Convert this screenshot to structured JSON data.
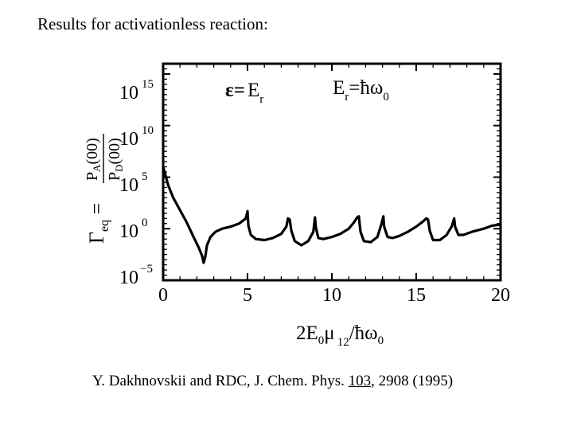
{
  "slide": {
    "title": "Results for activationless reaction:",
    "citation": {
      "prefix": "Y. Dakhnovskii and RDC, J. Chem. Phys. ",
      "volume": "103",
      "suffix": ", 2908 (1995)"
    }
  },
  "chart_data": {
    "type": "line",
    "title": "",
    "xlabel": "2E0μ12/ħω0",
    "ylabel": "Γeq = PA(00)/PD(00)",
    "xlim": [
      0,
      20
    ],
    "ylim_log10": [
      -5,
      16
    ],
    "y_scale": "log",
    "x_ticks": [
      "0",
      "5",
      "10",
      "15",
      "20"
    ],
    "y_ticks": [
      {
        "base": "10",
        "exp": "15"
      },
      {
        "base": "10",
        "exp": "10"
      },
      {
        "base": "10",
        "exp": "5"
      },
      {
        "base": "10",
        "exp": "0"
      },
      {
        "base": "10",
        "exp": "−5"
      }
    ],
    "annotations": {
      "condition_lhs": "ε",
      "condition_eq": "=",
      "condition_rhs_base": "E",
      "condition_rhs_sub": "r",
      "param_base": "E",
      "param_sub": "r",
      "param_eq": "=ħω",
      "param_sub2": "0"
    },
    "series": [
      {
        "color": "#000000",
        "x": [
          0.0,
          0.3,
          0.6,
          1.0,
          1.4,
          1.8,
          2.1,
          2.3,
          2.4,
          2.5,
          2.6,
          2.8,
          3.1,
          3.5,
          4.0,
          4.5,
          4.9,
          5.0,
          5.05,
          5.2,
          5.5,
          6.0,
          6.5,
          7.0,
          7.3,
          7.4,
          7.5,
          7.6,
          7.8,
          8.2,
          8.6,
          8.9,
          9.0,
          9.05,
          9.2,
          9.5,
          10.0,
          10.5,
          11.0,
          11.3,
          11.5,
          11.6,
          11.7,
          11.9,
          12.3,
          12.7,
          12.95,
          13.05,
          13.1,
          13.3,
          13.6,
          14.0,
          14.5,
          15.0,
          15.4,
          15.6,
          15.7,
          15.8,
          16.0,
          16.4,
          16.8,
          17.1,
          17.25,
          17.3,
          17.5,
          17.8,
          18.3,
          19.0,
          19.5,
          20.0
        ],
        "y_log10": [
          6.0,
          4.2,
          3.0,
          1.8,
          0.6,
          -0.8,
          -1.8,
          -2.6,
          -3.3,
          -2.7,
          -1.6,
          -0.8,
          -0.3,
          0.0,
          0.2,
          0.5,
          1.0,
          1.7,
          0.3,
          -0.6,
          -1.0,
          -1.1,
          -0.9,
          -0.5,
          0.2,
          1.0,
          0.9,
          -0.2,
          -1.2,
          -1.6,
          -1.2,
          -0.3,
          1.1,
          0.1,
          -0.9,
          -1.0,
          -0.8,
          -0.5,
          0.0,
          0.6,
          1.1,
          1.2,
          -0.3,
          -1.2,
          -1.3,
          -0.8,
          0.5,
          1.2,
          0.2,
          -0.8,
          -0.9,
          -0.7,
          -0.3,
          0.2,
          0.7,
          1.0,
          0.9,
          -0.2,
          -1.1,
          -1.1,
          -0.6,
          0.2,
          1.0,
          0.2,
          -0.6,
          -0.6,
          -0.3,
          0.0,
          0.3,
          0.4
        ]
      }
    ]
  }
}
